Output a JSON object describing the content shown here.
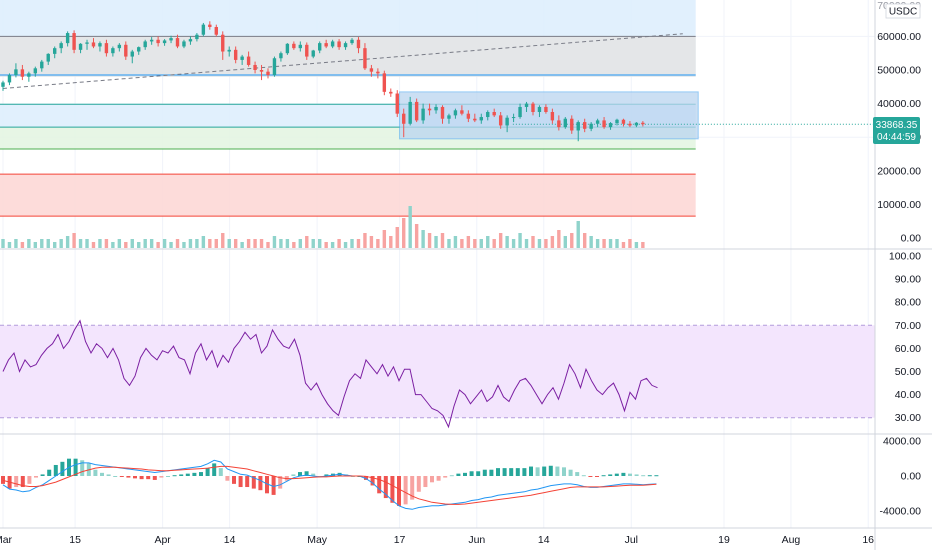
{
  "header": {
    "currency_badge": "USDC",
    "top_tick_partial": "70000.00"
  },
  "price_tag": {
    "value": "33868.35",
    "countdown": "04:44:59"
  },
  "colors": {
    "up": "#26a69a",
    "down": "#ef5350",
    "upFade": "#8fd3cb",
    "downFade": "#f7a3a1",
    "rsi": "#7b1fa2",
    "rsiBand": "#f3e5fd",
    "macd": "#2196f3",
    "signal": "#f44336",
    "blueZone": "#dcedfd",
    "grayZone": "#e4e4e4",
    "greenZone": "#e3f4e1",
    "redZone": "#fdd6d3",
    "rangeBox": "#b9d4ef",
    "grid": "#f0f3fa",
    "axisText": "#131722"
  },
  "chart_data": [
    {
      "type": "candlestick",
      "pane": "price",
      "y_ticks": [
        "60000.00",
        "50000.00",
        "40000.00",
        "30000.00",
        "20000.00",
        "10000.00",
        "0.00"
      ],
      "y_range": [
        -1000,
        70000
      ],
      "zones": [
        {
          "kind": "blue",
          "from": 48000,
          "to": 72000
        },
        {
          "kind": "gray",
          "from": 48000,
          "to": 60000
        },
        {
          "kind": "blue",
          "from": 33000,
          "to": 40000
        },
        {
          "kind": "green",
          "from": 26500,
          "to": 33000
        },
        {
          "kind": "red",
          "from": 6500,
          "to": 19000
        }
      ],
      "levels": [
        60000,
        48500,
        39800,
        33000,
        26500,
        19000,
        6500
      ],
      "range_box": {
        "from_day": 77,
        "to_day": 124,
        "low": 29500,
        "high": 43500
      },
      "trend_line": {
        "from": [
          0,
          44500
        ],
        "to": [
          124,
          60000
        ]
      },
      "last_price": 33868.35,
      "ohlc": [
        [
          45000,
          46800,
          43800,
          46300
        ],
        [
          46300,
          49000,
          45500,
          48500
        ],
        [
          48500,
          52000,
          47800,
          50200
        ],
        [
          50200,
          51500,
          47000,
          48000
        ],
        [
          48000,
          49500,
          46500,
          49000
        ],
        [
          49000,
          51000,
          48000,
          50500
        ],
        [
          50500,
          53000,
          49500,
          52500
        ],
        [
          52500,
          55000,
          51500,
          54800
        ],
        [
          54800,
          57000,
          53500,
          56500
        ],
        [
          56500,
          58500,
          55000,
          58000
        ],
        [
          58000,
          61500,
          57000,
          61000
        ],
        [
          61000,
          61800,
          55000,
          56000
        ],
        [
          56000,
          58000,
          55000,
          57800
        ],
        [
          57800,
          59000,
          56000,
          58200
        ],
        [
          58200,
          59500,
          56500,
          57000
        ],
        [
          57000,
          58500,
          55500,
          58000
        ],
        [
          58000,
          59000,
          54000,
          55000
        ],
        [
          55000,
          57000,
          54000,
          56500
        ],
        [
          56500,
          58000,
          55500,
          57500
        ],
        [
          57500,
          58500,
          53000,
          54000
        ],
        [
          54000,
          56000,
          52000,
          55500
        ],
        [
          55500,
          57000,
          54500,
          56800
        ],
        [
          56800,
          59000,
          56000,
          58500
        ],
        [
          58500,
          59800,
          57500,
          59000
        ],
        [
          59000,
          60000,
          57000,
          58000
        ],
        [
          58000,
          59200,
          57200,
          58800
        ],
        [
          58800,
          60200,
          58000,
          59500
        ],
        [
          59500,
          60500,
          56500,
          57000
        ],
        [
          57000,
          59000,
          56500,
          58500
        ],
        [
          58500,
          60000,
          57500,
          59200
        ],
        [
          59200,
          61000,
          58500,
          60500
        ],
        [
          60500,
          64000,
          60000,
          63500
        ],
        [
          63500,
          64500,
          62000,
          62800
        ],
        [
          62800,
          63500,
          60000,
          60500
        ],
        [
          60500,
          61500,
          53000,
          55500
        ],
        [
          55500,
          57000,
          54000,
          56000
        ],
        [
          56000,
          57000,
          52000,
          53000
        ],
        [
          53000,
          54500,
          51500,
          54000
        ],
        [
          54000,
          55500,
          51000,
          51500
        ],
        [
          51500,
          52500,
          49000,
          50000
        ],
        [
          50000,
          51500,
          47000,
          49500
        ],
        [
          49500,
          50500,
          47500,
          48500
        ],
        [
          48500,
          54000,
          48000,
          53500
        ],
        [
          53500,
          55500,
          52500,
          55000
        ],
        [
          55000,
          58000,
          54500,
          57800
        ],
        [
          57800,
          58500,
          56000,
          56500
        ],
        [
          56500,
          58500,
          55500,
          57500
        ],
        [
          57500,
          58200,
          53000,
          54000
        ],
        [
          54000,
          56000,
          53500,
          55800
        ],
        [
          55800,
          58500,
          55000,
          58000
        ],
        [
          58000,
          59000,
          56500,
          57000
        ],
        [
          57000,
          59000,
          56500,
          58500
        ],
        [
          58500,
          59200,
          56000,
          56800
        ],
        [
          56800,
          58500,
          56000,
          58000
        ],
        [
          58000,
          59500,
          57500,
          59000
        ],
        [
          59000,
          59800,
          55000,
          56500
        ],
        [
          56500,
          58000,
          50000,
          50500
        ],
        [
          50500,
          51500,
          48000,
          49500
        ],
        [
          49500,
          50500,
          47500,
          49000
        ],
        [
          49000,
          49800,
          42500,
          43500
        ],
        [
          43500,
          44500,
          42000,
          43000
        ],
        [
          43000,
          44000,
          36000,
          37000
        ],
        [
          37000,
          38500,
          30000,
          34000
        ],
        [
          34000,
          42000,
          33500,
          40500
        ],
        [
          40500,
          41500,
          34500,
          35000
        ],
        [
          35000,
          40000,
          34000,
          38500
        ],
        [
          38500,
          40000,
          36500,
          38000
        ],
        [
          38000,
          39800,
          37000,
          39000
        ],
        [
          39000,
          39500,
          34000,
          35500
        ],
        [
          35500,
          37000,
          34000,
          36500
        ],
        [
          36500,
          38500,
          35500,
          38000
        ],
        [
          38000,
          39500,
          36500,
          37000
        ],
        [
          37000,
          38000,
          34500,
          35500
        ],
        [
          35500,
          37000,
          34500,
          35000
        ],
        [
          35000,
          37000,
          34000,
          36000
        ],
        [
          36000,
          38000,
          35000,
          37500
        ],
        [
          37500,
          38500,
          36000,
          36500
        ],
        [
          36500,
          37500,
          32500,
          33500
        ],
        [
          33500,
          36500,
          31500,
          35800
        ],
        [
          35800,
          37000,
          34500,
          36000
        ],
        [
          36000,
          40000,
          35500,
          39000
        ],
        [
          39000,
          40500,
          37500,
          40000
        ],
        [
          40000,
          40500,
          36500,
          37500
        ],
        [
          37500,
          39500,
          36000,
          39000
        ],
        [
          39000,
          39800,
          37000,
          37500
        ],
        [
          37500,
          38500,
          34000,
          35000
        ],
        [
          35000,
          36500,
          32000,
          33000
        ],
        [
          33000,
          36000,
          32500,
          35500
        ],
        [
          35500,
          36500,
          31000,
          32000
        ],
        [
          32000,
          35000,
          28800,
          34500
        ],
        [
          34500,
          35500,
          31500,
          32500
        ],
        [
          32500,
          34500,
          31800,
          34000
        ],
        [
          34000,
          35500,
          33000,
          35000
        ],
        [
          35000,
          36000,
          32500,
          33000
        ],
        [
          33000,
          34500,
          32200,
          34200
        ],
        [
          34200,
          35500,
          33500,
          35200
        ],
        [
          35200,
          35500,
          33200,
          34000
        ],
        [
          34000,
          34800,
          33000,
          33500
        ],
        [
          33500,
          34500,
          33000,
          34300
        ],
        [
          34300,
          34800,
          33200,
          33868
        ]
      ],
      "volume": [
        3,
        2,
        3,
        2,
        3,
        2,
        3,
        3,
        2,
        3,
        4,
        5,
        3,
        3,
        2,
        3,
        3,
        2,
        3,
        2,
        3,
        2,
        3,
        3,
        2,
        3,
        2,
        3,
        2,
        3,
        3,
        4,
        3,
        3,
        5,
        3,
        3,
        2,
        3,
        3,
        3,
        2,
        4,
        3,
        3,
        2,
        3,
        4,
        3,
        3,
        2,
        2,
        3,
        2,
        3,
        3,
        5,
        4,
        3,
        6,
        4,
        7,
        10,
        14,
        8,
        6,
        5,
        4,
        5,
        3,
        4,
        3,
        4,
        3,
        3,
        4,
        3,
        5,
        4,
        3,
        5,
        3,
        4,
        3,
        3,
        4,
        6,
        4,
        5,
        9,
        5,
        4,
        3,
        3,
        3,
        3,
        2,
        3,
        2,
        2
      ],
      "x_ticks": [
        {
          "label": "Mar",
          "day": 0
        },
        {
          "label": "15",
          "day": 14
        },
        {
          "label": "Apr",
          "day": 31
        },
        {
          "label": "14",
          "day": 44
        },
        {
          "label": "May",
          "day": 61
        },
        {
          "label": "17",
          "day": 77
        },
        {
          "label": "Jun",
          "day": 92
        },
        {
          "label": "14",
          "day": 105
        },
        {
          "label": "Jul",
          "day": 122
        },
        {
          "label": "19",
          "day": 140
        },
        {
          "label": "Aug",
          "day": 153
        },
        {
          "label": "16",
          "day": 168
        }
      ]
    },
    {
      "type": "line",
      "pane": "rsi",
      "y_ticks": [
        "100.00",
        "90.00",
        "80.00",
        "70.00",
        "60.00",
        "50.00",
        "40.00",
        "30.00"
      ],
      "y_range": [
        25,
        100
      ],
      "band": [
        30,
        70
      ],
      "values": [
        50,
        55,
        58,
        50,
        55,
        52,
        53,
        57,
        60,
        62,
        66,
        60,
        63,
        68,
        72,
        63,
        58,
        62,
        60,
        56,
        60,
        55,
        47,
        44,
        48,
        56,
        60,
        57,
        55,
        59,
        58,
        61,
        56,
        55,
        49,
        58,
        62,
        55,
        59,
        52,
        57,
        54,
        60,
        63,
        67,
        64,
        66,
        58,
        61,
        68,
        64,
        61,
        60,
        64,
        57,
        45,
        42,
        45,
        40,
        36,
        33,
        31,
        39,
        46,
        49,
        47,
        55,
        52,
        49,
        53,
        48,
        52,
        46,
        51,
        51,
        40,
        40,
        37,
        34,
        33,
        31,
        26,
        35,
        42,
        40,
        36,
        39,
        42,
        37,
        39,
        44,
        39,
        37,
        42,
        46,
        47,
        44,
        40,
        36,
        40,
        43,
        38,
        45,
        53,
        49,
        43,
        51,
        46,
        42,
        40,
        43,
        45,
        40,
        33,
        41,
        38,
        46,
        47,
        44,
        43
      ]
    },
    {
      "type": "macd",
      "pane": "macd",
      "y_ticks": [
        "4000.00",
        "0.00",
        "-4000.00"
      ],
      "y_range": [
        -5000,
        4800
      ],
      "macd": [
        -1000,
        -1500,
        -1600,
        -1800,
        -1700,
        -1300,
        -1000,
        -500,
        0,
        500,
        1000,
        1300,
        1500,
        1500,
        1300,
        1200,
        1100,
        1000,
        900,
        800,
        700,
        600,
        500,
        400,
        500,
        600,
        700,
        800,
        900,
        1000,
        1100,
        1400,
        1800,
        1600,
        800,
        500,
        200,
        100,
        -200,
        -500,
        -900,
        -1200,
        -1000,
        -600,
        -200,
        0,
        100,
        0,
        -100,
        0,
        100,
        200,
        100,
        0,
        0,
        -300,
        -800,
        -1500,
        -2100,
        -2800,
        -3400,
        -3700,
        -3800,
        -3600,
        -3500,
        -3400,
        -3400,
        -3300,
        -3200,
        -3100,
        -3000,
        -2800,
        -2700,
        -2500,
        -2400,
        -2200,
        -2100,
        -2000,
        -1900,
        -1800,
        -1600,
        -1500,
        -1300,
        -1100,
        -1000,
        -900,
        -900,
        -1000,
        -1200,
        -1300,
        -1300,
        -1200,
        -1100,
        -1000,
        -900,
        -900,
        -950,
        -1000,
        -950,
        -900
      ],
      "signal": [
        -500,
        -700,
        -900,
        -1100,
        -1200,
        -1200,
        -1100,
        -900,
        -700,
        -400,
        -100,
        200,
        500,
        700,
        900,
        1000,
        1000,
        1000,
        950,
        900,
        850,
        800,
        700,
        650,
        600,
        600,
        650,
        700,
        750,
        800,
        850,
        900,
        1000,
        1100,
        1100,
        1000,
        900,
        800,
        600,
        400,
        200,
        0,
        -200,
        -300,
        -300,
        -250,
        -200,
        -150,
        -100,
        -100,
        -50,
        0,
        0,
        0,
        0,
        -50,
        -200,
        -400,
        -700,
        -1100,
        -1500,
        -1900,
        -2300,
        -2600,
        -2800,
        -3000,
        -3100,
        -3200,
        -3250,
        -3250,
        -3200,
        -3100,
        -3000,
        -2900,
        -2800,
        -2700,
        -2600,
        -2500,
        -2400,
        -2300,
        -2200,
        -2050,
        -1900,
        -1750,
        -1600,
        -1450,
        -1300,
        -1250,
        -1250,
        -1250,
        -1250,
        -1250,
        -1200,
        -1150,
        -1100,
        -1050,
        -1050,
        -1050,
        -1000,
        -950
      ]
    }
  ]
}
